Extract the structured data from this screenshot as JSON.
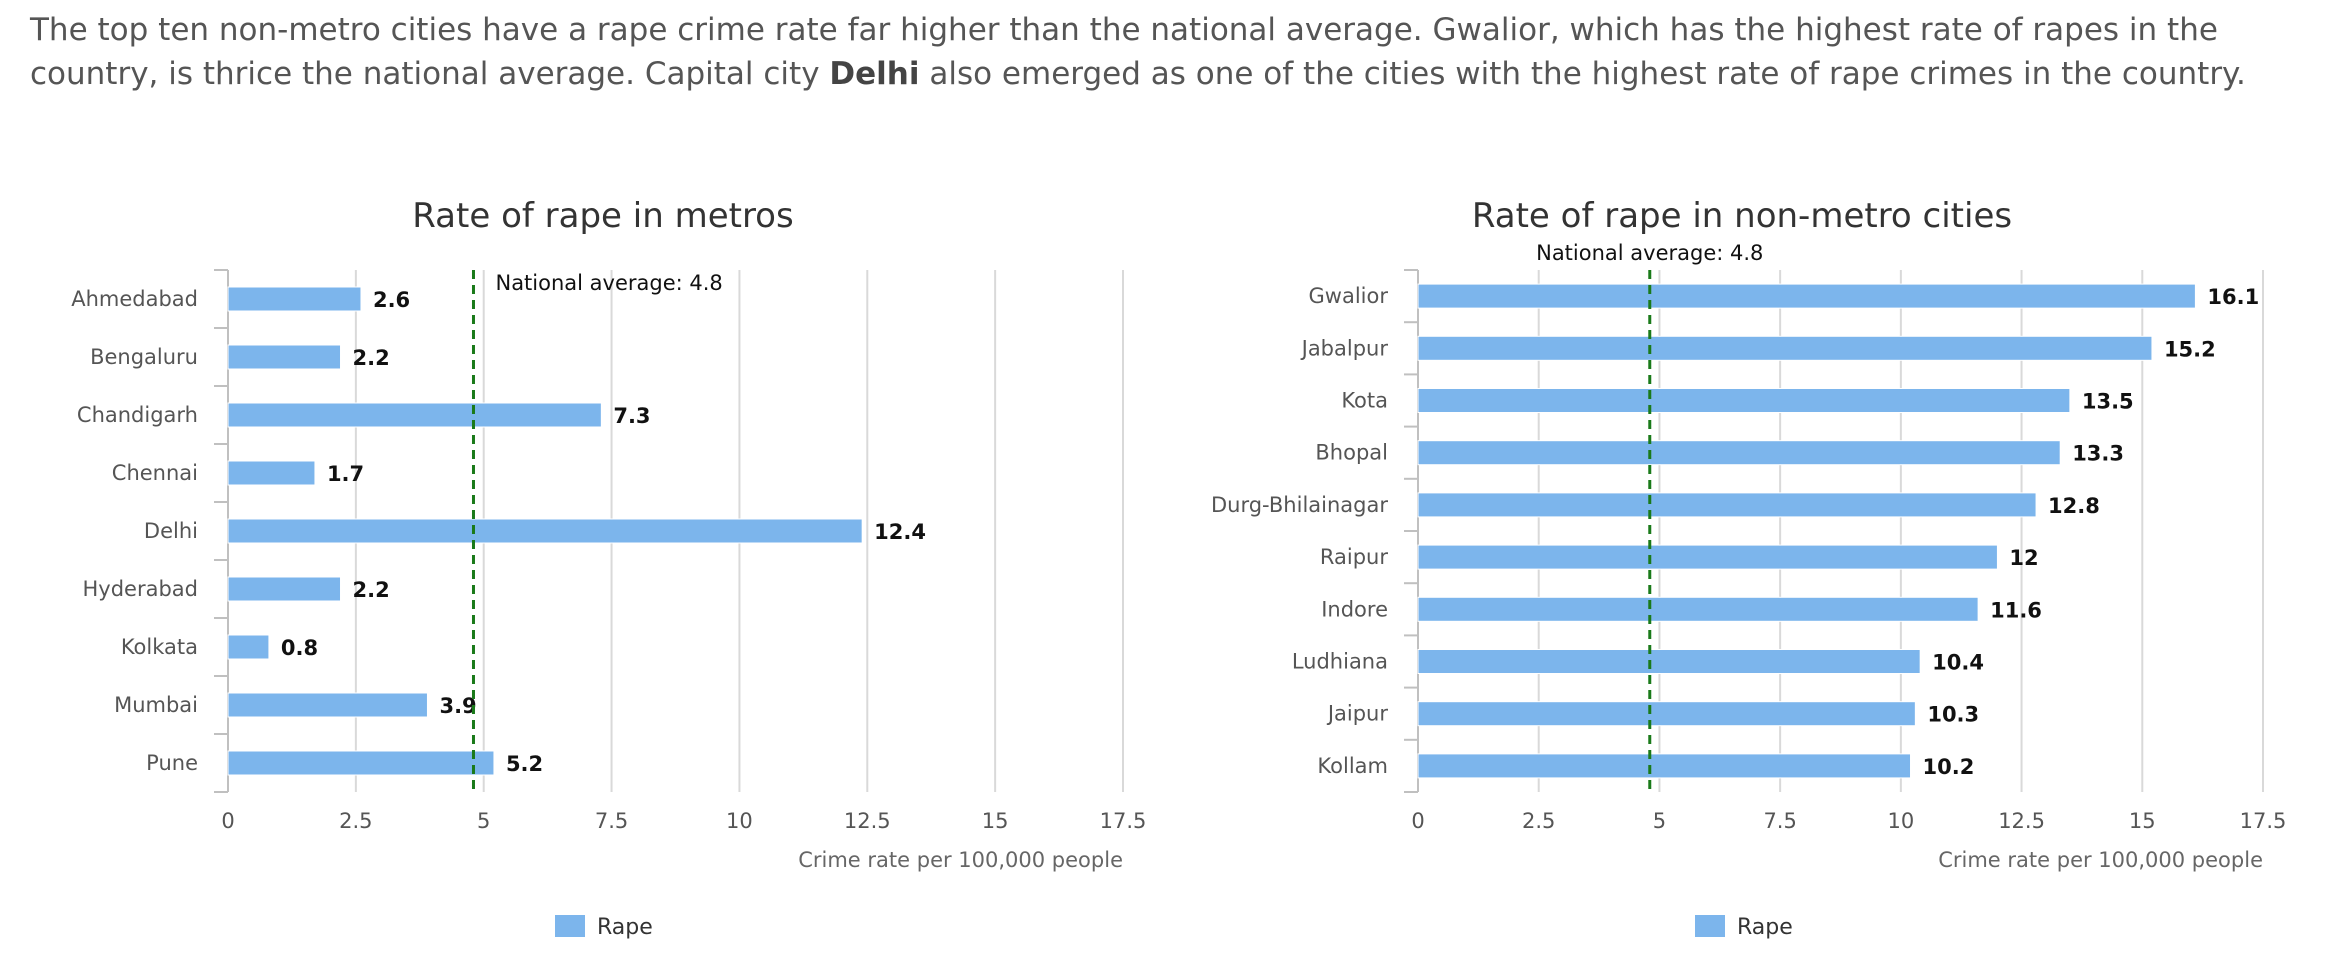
{
  "intro": {
    "part1": "The top ten non-metro cities have a rape crime rate far higher than the national average. Gwalior, which has the highest rate of rapes in the country, is thrice the national average. Capital city ",
    "bold": "Delhi",
    "part2": " also emerged as one of the cities with the highest rate of rape crimes in the country."
  },
  "colors": {
    "bar": "#7cb5ec",
    "average_line": "#1a7a1a",
    "grid": "#d9d9d9"
  },
  "chart_data": [
    {
      "type": "bar",
      "orientation": "horizontal",
      "title": "Rate of rape in metros",
      "categories": [
        "Ahmedabad",
        "Bengaluru",
        "Chandigarh",
        "Chennai",
        "Delhi",
        "Hyderabad",
        "Kolkata",
        "Mumbai",
        "Pune"
      ],
      "series": [
        {
          "name": "Rape",
          "values": [
            2.6,
            2.2,
            7.3,
            1.7,
            12.4,
            2.2,
            0.8,
            3.9,
            5.2
          ]
        }
      ],
      "xlabel": "Crime rate per 100,000 people",
      "xlim": [
        0,
        17.5
      ],
      "xticks": [
        "0",
        "2.5",
        "5",
        "7.5",
        "10",
        "12.5",
        "15",
        "17.5"
      ],
      "grid": true,
      "legend_position": "bottom",
      "reference_line": {
        "value": 4.8,
        "label": "National average: 4.8"
      }
    },
    {
      "type": "bar",
      "orientation": "horizontal",
      "title": "Rate of rape in non-metro cities",
      "categories": [
        "Gwalior",
        "Jabalpur",
        "Kota",
        "Bhopal",
        "Durg-Bhilainagar",
        "Raipur",
        "Indore",
        "Ludhiana",
        "Jaipur",
        "Kollam"
      ],
      "series": [
        {
          "name": "Rape",
          "values": [
            16.1,
            15.2,
            13.5,
            13.3,
            12.8,
            12,
            11.6,
            10.4,
            10.3,
            10.2
          ]
        }
      ],
      "xlabel": "Crime rate per 100,000 people",
      "xlim": [
        0,
        17.5
      ],
      "xticks": [
        "0",
        "2.5",
        "5",
        "7.5",
        "10",
        "12.5",
        "15",
        "17.5"
      ],
      "grid": true,
      "legend_position": "bottom",
      "reference_line": {
        "value": 4.8,
        "label": "National average: 4.8"
      }
    }
  ]
}
